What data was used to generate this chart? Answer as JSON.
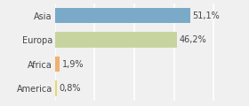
{
  "categories": [
    "America",
    "Africa",
    "Europa",
    "Asia"
  ],
  "values": [
    0.8,
    1.9,
    46.2,
    51.1
  ],
  "labels": [
    "0,8%",
    "1,9%",
    "46,2%",
    "51,1%"
  ],
  "bar_colors": [
    "#e8d870",
    "#f0b070",
    "#c8d4a0",
    "#7aaac8"
  ],
  "background_color": "#f0f0f0",
  "xlim": [
    0,
    62
  ],
  "bar_height": 0.65,
  "label_fontsize": 7,
  "tick_fontsize": 7,
  "grid_color": "#ffffff",
  "grid_linewidth": 1.2,
  "text_color": "#444444"
}
